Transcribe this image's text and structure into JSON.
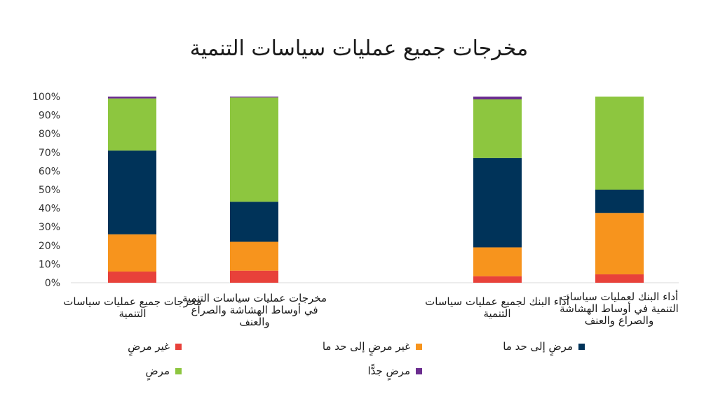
{
  "chart_data": {
    "type": "bar",
    "stacked": true,
    "title": "مخرجات جميع عمليات سياسات التنمية",
    "y_ticks": [
      "0%",
      "10%",
      "20%",
      "30%",
      "40%",
      "50%",
      "60%",
      "70%",
      "80%",
      "90%",
      "100%"
    ],
    "ylim": [
      0,
      100
    ],
    "categories": [
      "مخرجات جميع عمليات سياسات التنمية",
      "مخرجات عمليات سياسات التنمية في أوساط الهشاشة والصراع والعنف",
      "أداء البنك لجميع عمليات سياسات التنمية",
      "أداء البنك لعمليات سياسات التنمية في أوساط الهشاشة والصراع والعنف"
    ],
    "series": [
      {
        "name": "غير مرضٍ",
        "color": "#e8413a",
        "values": [
          6,
          6.5,
          3.5,
          4.5
        ]
      },
      {
        "name": "غير مرضٍ إلى حد ما",
        "color": "#f7941d",
        "values": [
          20,
          15.5,
          15.5,
          33
        ]
      },
      {
        "name": "مرضٍ إلى حد ما",
        "color": "#003359",
        "values": [
          45,
          21.5,
          48,
          12.5
        ]
      },
      {
        "name": "مرضٍ",
        "color": "#8dc63f",
        "values": [
          28,
          56,
          31.5,
          50
        ]
      },
      {
        "name": "مرضٍ جدًّا",
        "color": "#6b2d8f",
        "values": [
          1,
          0.5,
          1.5,
          0
        ]
      }
    ],
    "grid": false
  }
}
